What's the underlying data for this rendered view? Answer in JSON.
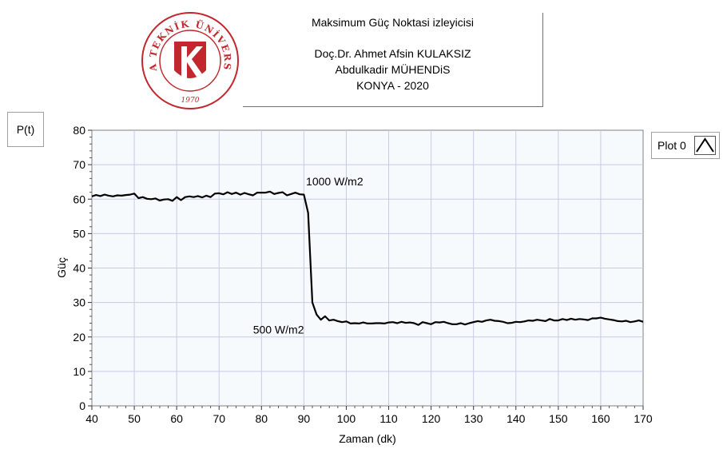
{
  "header": {
    "title_lines": [
      "Maksimum Güç Noktasi izleyicisi",
      "Doç.Dr. Ahmet Afsin KULAKSIZ",
      "Abdulkadir MÜHENDiS",
      "KONYA - 2020"
    ]
  },
  "logo": {
    "ring_text": "KONYA TEKNİK ÜNİVERSİTESİ",
    "year": "1970",
    "color": "#c1272d"
  },
  "plot_label": "P(t)",
  "legend": {
    "label": "Plot 0"
  },
  "chart_data": {
    "type": "line",
    "xlabel": "Zaman (dk)",
    "ylabel": "Güç",
    "xlim": [
      40,
      170
    ],
    "ylim": [
      0,
      80
    ],
    "xticks": [
      40,
      50,
      60,
      70,
      80,
      90,
      100,
      110,
      120,
      130,
      140,
      150,
      160,
      170
    ],
    "yticks": [
      0,
      10,
      20,
      30,
      40,
      50,
      60,
      70,
      80
    ],
    "grid": true,
    "legend_position": "top-right",
    "annotations": [
      {
        "text": "1000 W/m2",
        "x": 90.5,
        "y": 64
      },
      {
        "text": "500 W/m2",
        "x": 78,
        "y": 21
      }
    ],
    "series": [
      {
        "name": "Plot 0",
        "color": "#000000",
        "x": [
          40,
          41,
          42,
          43,
          44,
          45,
          46,
          47,
          48,
          49,
          50,
          51,
          52,
          53,
          54,
          55,
          56,
          57,
          58,
          59,
          60,
          61,
          62,
          63,
          64,
          65,
          66,
          67,
          68,
          69,
          70,
          71,
          72,
          73,
          74,
          75,
          76,
          77,
          78,
          79,
          80,
          81,
          82,
          83,
          84,
          85,
          86,
          87,
          88,
          89,
          90,
          91,
          92,
          93,
          94,
          95,
          96,
          97,
          98,
          99,
          100,
          101,
          102,
          103,
          104,
          105,
          106,
          107,
          108,
          109,
          110,
          111,
          112,
          113,
          114,
          115,
          116,
          117,
          118,
          119,
          120,
          121,
          122,
          123,
          124,
          125,
          126,
          127,
          128,
          129,
          130,
          131,
          132,
          133,
          134,
          135,
          136,
          137,
          138,
          139,
          140,
          141,
          142,
          143,
          144,
          145,
          146,
          147,
          148,
          149,
          150,
          151,
          152,
          153,
          154,
          155,
          156,
          157,
          158,
          159,
          160,
          161,
          162,
          163,
          164,
          165,
          166,
          167,
          168,
          169,
          170
        ],
        "values": [
          60.8,
          61.2,
          60.9,
          61.3,
          61.0,
          60.8,
          61.1,
          61.0,
          61.2,
          61.3,
          61.6,
          60.3,
          60.6,
          60.1,
          60.0,
          60.2,
          59.6,
          59.9,
          60.0,
          59.5,
          60.6,
          59.7,
          60.6,
          60.8,
          60.6,
          60.9,
          60.5,
          61.0,
          60.6,
          61.6,
          61.7,
          61.4,
          62.0,
          61.5,
          61.9,
          61.3,
          61.8,
          61.4,
          61.1,
          61.9,
          61.9,
          61.9,
          62.2,
          61.5,
          61.8,
          62.0,
          61.1,
          61.5,
          61.9,
          61.4,
          61.3,
          56.0,
          30.0,
          26.5,
          25.0,
          26.0,
          24.8,
          25.0,
          24.6,
          24.3,
          24.5,
          23.9,
          24.0,
          23.9,
          24.2,
          23.9,
          23.9,
          24.0,
          24.0,
          23.9,
          24.2,
          24.3,
          24.0,
          24.4,
          24.1,
          24.2,
          24.0,
          23.5,
          24.3,
          24.0,
          23.7,
          24.3,
          24.2,
          24.4,
          24.0,
          23.7,
          23.7,
          24.0,
          23.6,
          24.0,
          24.3,
          24.6,
          24.4,
          24.8,
          25.0,
          24.7,
          24.6,
          24.4,
          24.0,
          24.1,
          24.4,
          24.3,
          24.5,
          24.8,
          24.7,
          25.0,
          24.8,
          24.6,
          25.2,
          24.8,
          24.8,
          25.2,
          24.9,
          25.3,
          25.0,
          25.2,
          25.1,
          24.9,
          25.4,
          25.4,
          25.6,
          25.3,
          25.1,
          24.9,
          24.6,
          24.5,
          24.7,
          24.3,
          24.5,
          24.8,
          24.4
        ]
      }
    ]
  }
}
